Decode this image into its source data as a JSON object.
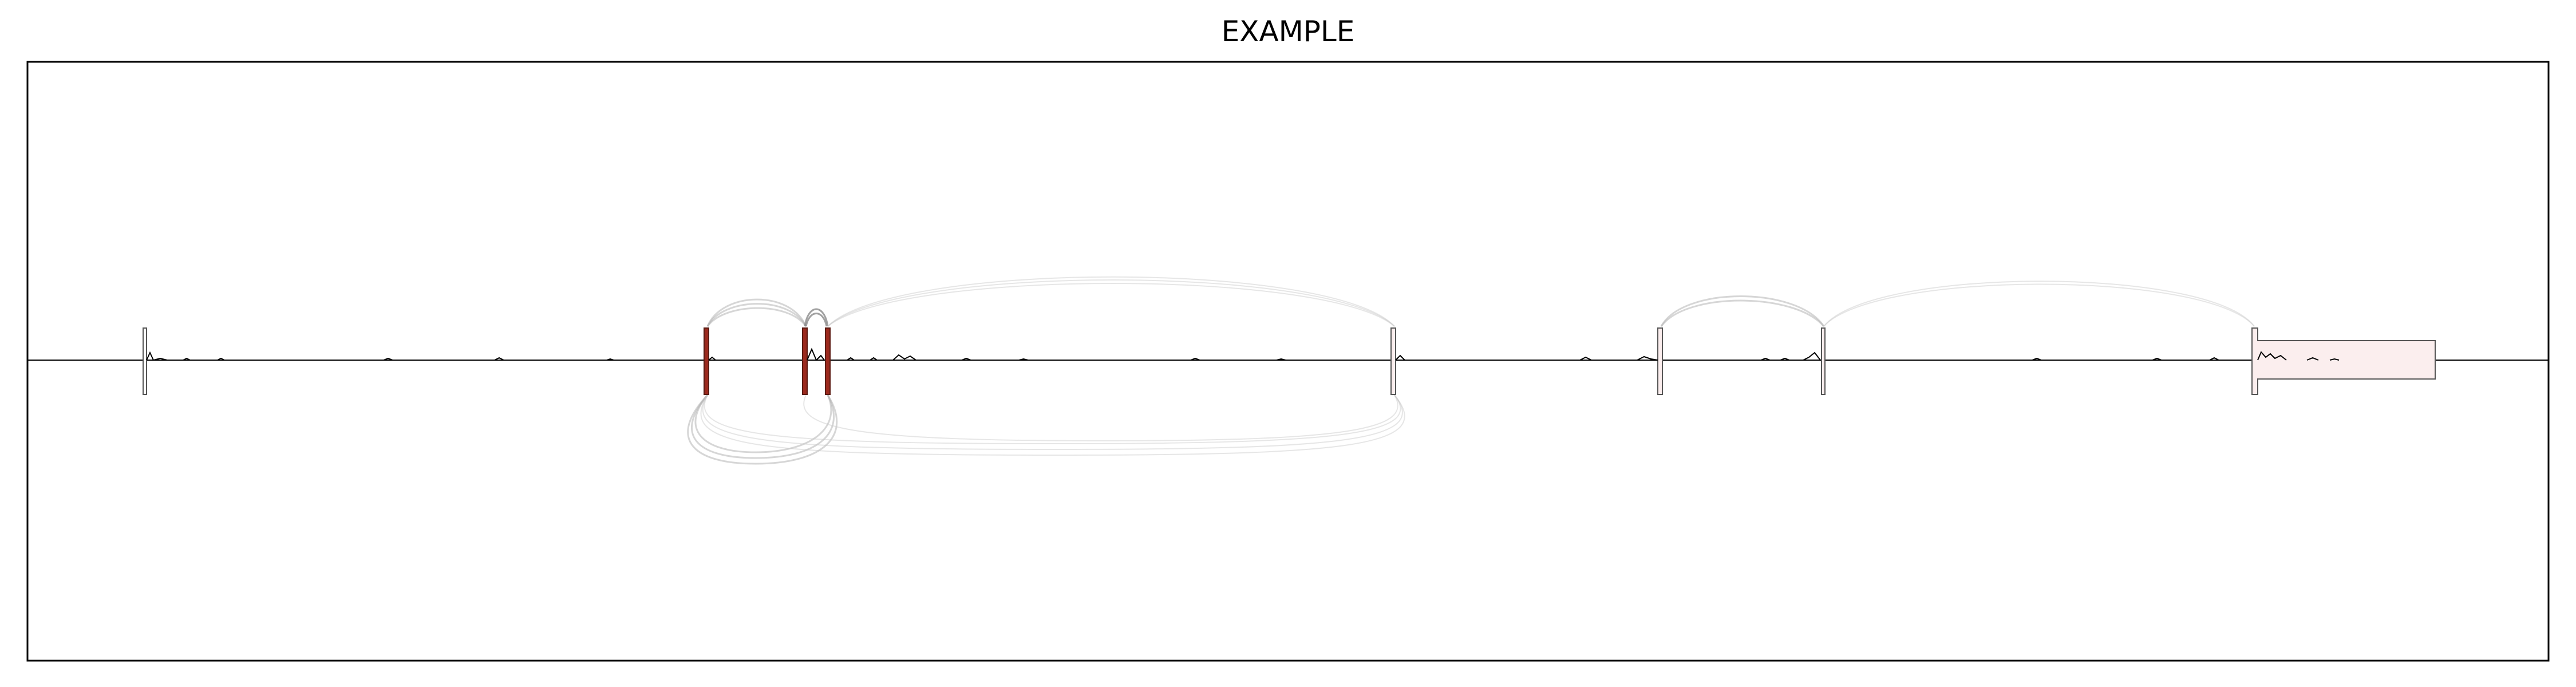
{
  "diagram": {
    "title": "EXAMPLE",
    "type": "splice-junction-plot",
    "colors": {
      "frame": "#000000",
      "exon_fill": "#fbeeee",
      "exon_highlight": "#9b2a1e",
      "junction_arc": "#b5b5b5"
    }
  }
}
